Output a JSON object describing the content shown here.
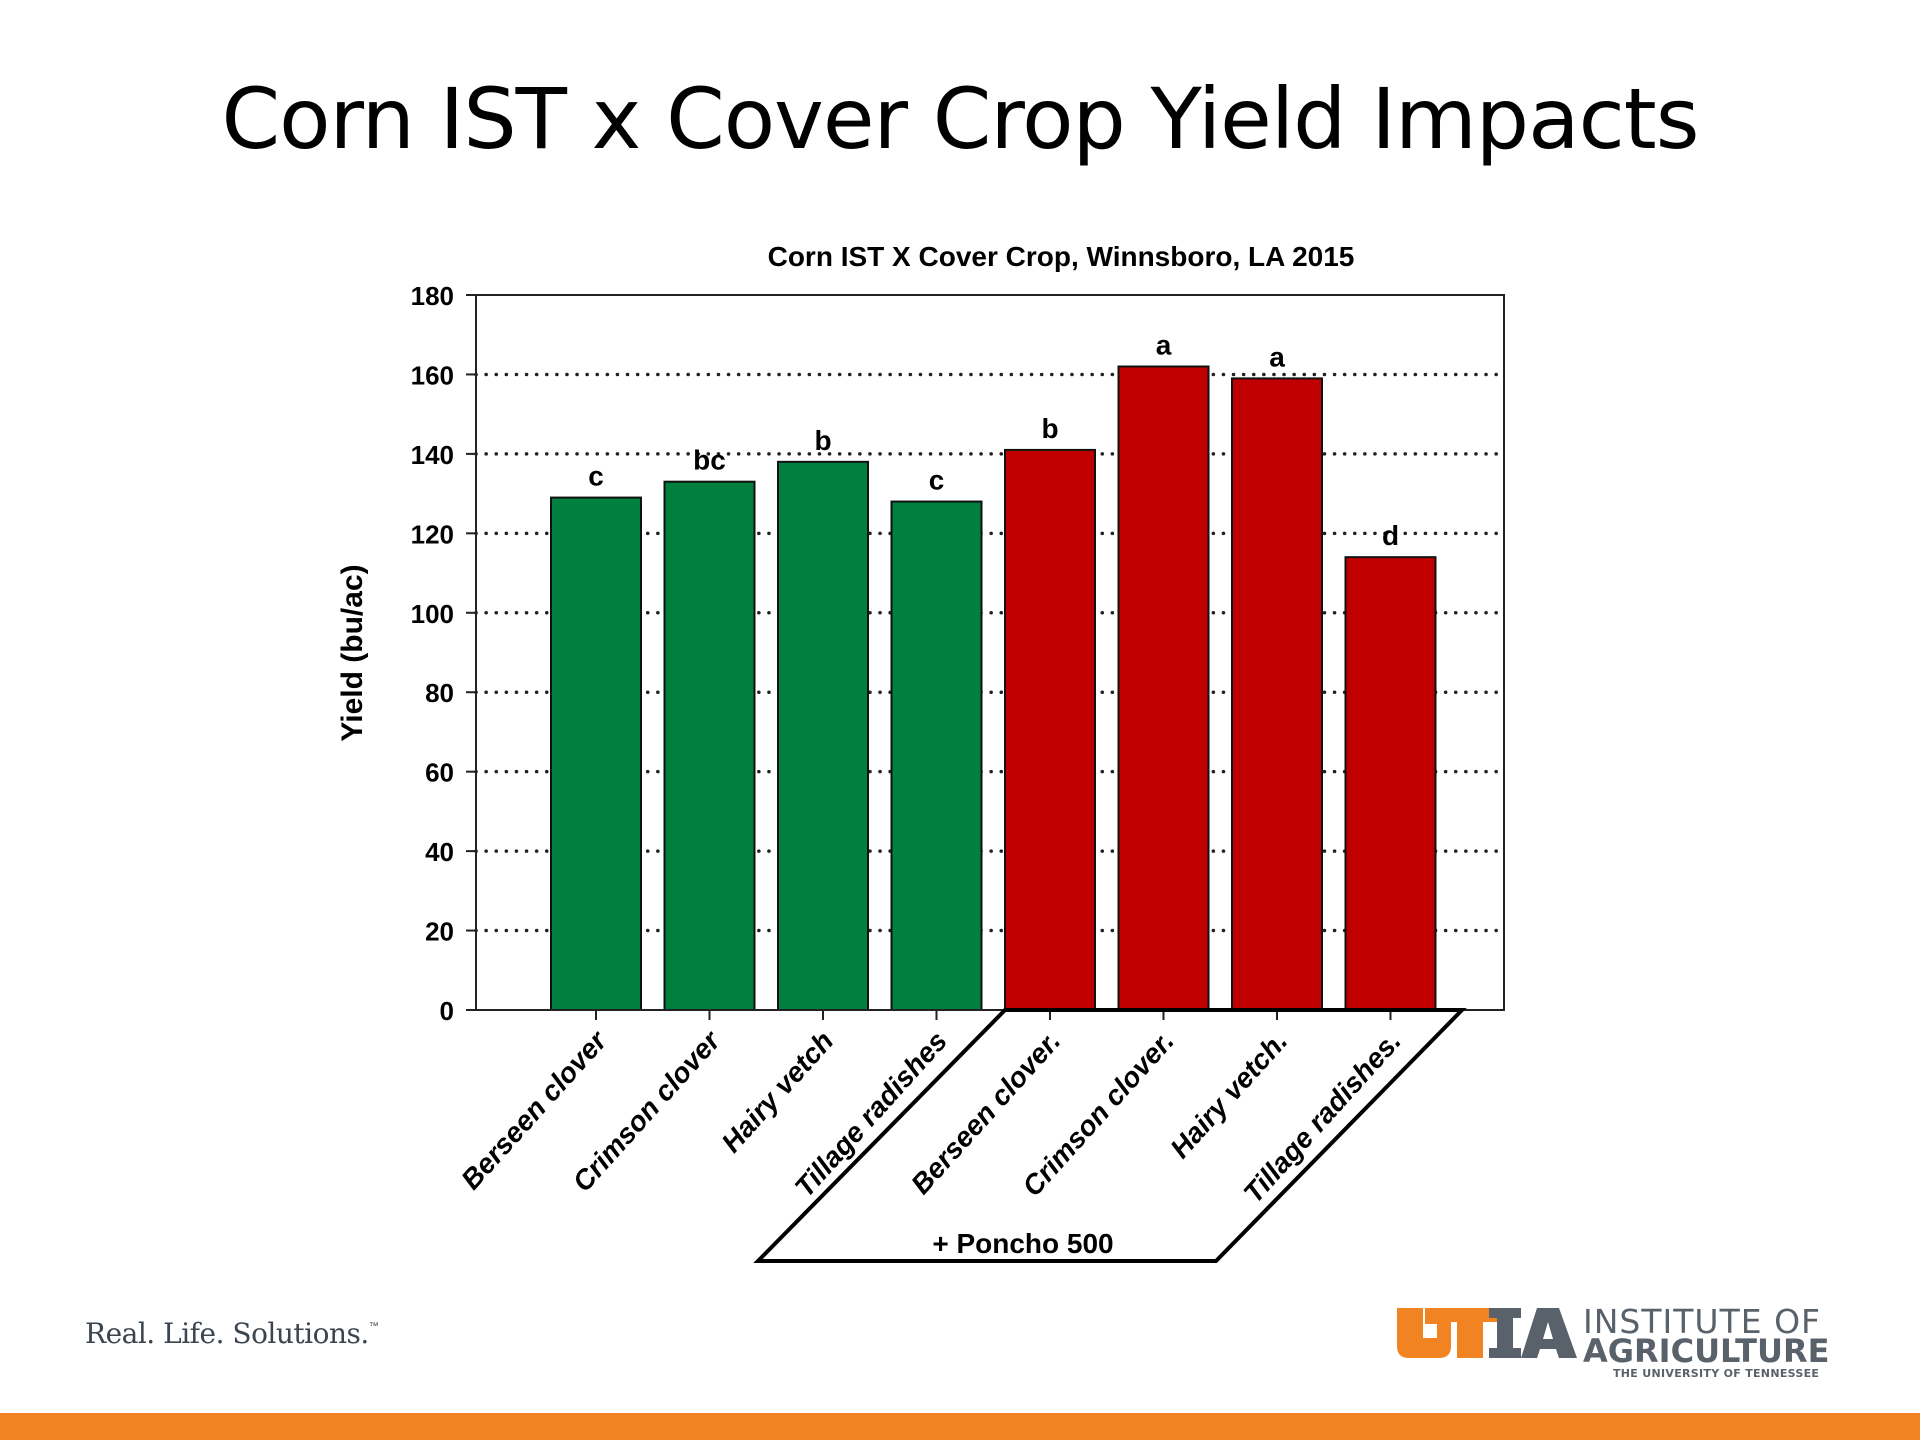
{
  "slide": {
    "title": "Corn IST x Cover Crop Yield Impacts",
    "tagline": "Real. Life. Solutions.",
    "tagline_tm": "™",
    "logo": {
      "line1": "INSTITUTE OF",
      "line2": "AGRICULTURE",
      "line3": "THE UNIVERSITY OF TENNESSEE",
      "mark": "UTIA",
      "orange": "#f28322",
      "gray": "#59626b"
    },
    "footer_color": "#f28322"
  },
  "chart_data": {
    "type": "bar",
    "title": "Corn IST X Cover Crop, Winnsboro, LA 2015",
    "xlabel": "",
    "ylabel": "Yield (bu/ac)",
    "ylim": [
      0,
      180
    ],
    "yticks": [
      0,
      20,
      40,
      60,
      80,
      100,
      120,
      140,
      160,
      180
    ],
    "grid": "dotted horizontal at each tick",
    "categories": [
      "Berseen clover",
      "Crimson clover",
      "Hairy vetch",
      "Tillage radishes",
      "Berseen clover.",
      "Crimson clover.",
      "Hairy vetch.",
      "Tillage radishes."
    ],
    "values": [
      129,
      133,
      138,
      128,
      141,
      162,
      159,
      114
    ],
    "letters": [
      "c",
      "bc",
      "b",
      "c",
      "b",
      "a",
      "a",
      "d"
    ],
    "colors": [
      "#00803f",
      "#00803f",
      "#00803f",
      "#00803f",
      "#c00000",
      "#c00000",
      "#c00000",
      "#c00000"
    ],
    "group_annotation": "+ Poncho 500"
  }
}
